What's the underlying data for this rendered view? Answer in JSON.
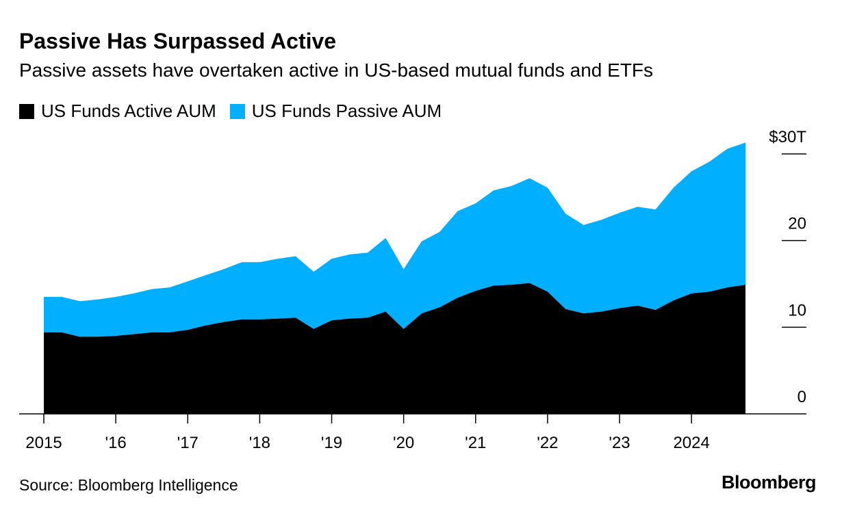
{
  "chart_data": {
    "type": "area",
    "stacked": true,
    "title": "Passive Has Surpassed Active",
    "subtitle": "Passive assets have overtaken active in US-based mutual funds and ETFs",
    "xlabel": "",
    "ylabel": "",
    "ylim": [
      0,
      30
    ],
    "y_ticks": [
      {
        "value": 30,
        "label": "$30T"
      },
      {
        "value": 20,
        "label": "20"
      },
      {
        "value": 10,
        "label": "10"
      },
      {
        "value": 0,
        "label": "0"
      }
    ],
    "x_ticks": [
      {
        "value": 2015,
        "label": "2015"
      },
      {
        "value": 2016,
        "label": "'16"
      },
      {
        "value": 2017,
        "label": "'17"
      },
      {
        "value": 2018,
        "label": "'18"
      },
      {
        "value": 2019,
        "label": "'19"
      },
      {
        "value": 2020,
        "label": "'20"
      },
      {
        "value": 2021,
        "label": "'21"
      },
      {
        "value": 2022,
        "label": "'22"
      },
      {
        "value": 2023,
        "label": "'23"
      },
      {
        "value": 2024,
        "label": "2024"
      }
    ],
    "x": [
      2015.0,
      2015.25,
      2015.5,
      2015.75,
      2016.0,
      2016.25,
      2016.5,
      2016.75,
      2017.0,
      2017.25,
      2017.5,
      2017.75,
      2018.0,
      2018.25,
      2018.5,
      2018.75,
      2019.0,
      2019.25,
      2019.5,
      2019.75,
      2020.0,
      2020.25,
      2020.5,
      2020.75,
      2021.0,
      2021.25,
      2021.5,
      2021.75,
      2022.0,
      2022.25,
      2022.5,
      2022.75,
      2023.0,
      2023.25,
      2023.5,
      2023.75,
      2024.0,
      2024.25,
      2024.5,
      2024.75
    ],
    "series": [
      {
        "name": "US Funds Active AUM",
        "color": "#000000",
        "values": [
          9.4,
          9.4,
          8.9,
          8.9,
          9.0,
          9.2,
          9.4,
          9.4,
          9.7,
          10.2,
          10.6,
          10.9,
          10.9,
          11.0,
          11.1,
          9.8,
          10.8,
          11.0,
          11.1,
          11.8,
          9.8,
          11.6,
          12.3,
          13.4,
          14.2,
          14.8,
          14.9,
          15.1,
          14.1,
          12.1,
          11.6,
          11.8,
          12.2,
          12.5,
          12.0,
          13.1,
          13.9,
          14.1,
          14.6,
          14.9
        ]
      },
      {
        "name": "US Funds Passive AUM",
        "color": "#00b0ff",
        "values": [
          4.1,
          4.1,
          4.1,
          4.3,
          4.5,
          4.7,
          5.0,
          5.2,
          5.6,
          5.8,
          6.1,
          6.6,
          6.6,
          6.9,
          7.1,
          6.6,
          7.1,
          7.4,
          7.5,
          8.5,
          6.9,
          8.3,
          8.7,
          10.0,
          10.1,
          11.0,
          11.4,
          12.1,
          12.0,
          11.0,
          10.2,
          10.6,
          11.0,
          11.4,
          11.6,
          13.0,
          14.1,
          15.0,
          16.0,
          16.4
        ]
      }
    ],
    "legend_position": "top-left",
    "grid": false
  },
  "source": "Source: Bloomberg Intelligence",
  "logo": "Bloomberg"
}
